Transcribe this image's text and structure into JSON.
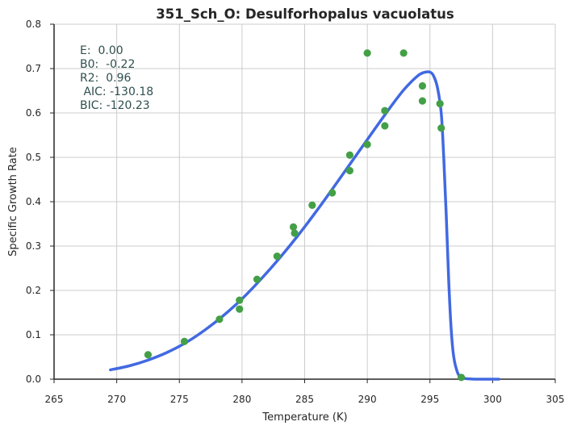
{
  "chart_data": {
    "type": "scatter",
    "title": "351_Sch_O: Desulforhopalus vacuolatus",
    "xlabel": "Temperature (K)",
    "ylabel": "Specific Growth Rate",
    "xlim": [
      265,
      305
    ],
    "ylim": [
      0,
      0.8
    ],
    "xticks": [
      265,
      270,
      275,
      280,
      285,
      290,
      295,
      300,
      305
    ],
    "yticks": [
      0.0,
      0.1,
      0.2,
      0.3,
      0.4,
      0.5,
      0.6,
      0.7,
      0.8
    ],
    "grid": true,
    "stats_lines": [
      "E:  0.00",
      "B0:  -0.22",
      "R2:  0.96",
      " AIC: -130.18",
      "BIC: -120.23"
    ],
    "colors": {
      "points": "#43a047",
      "fit": "#4169e1",
      "grid": "#cccccc",
      "axis": "#262626",
      "stats": "#2f4f4f"
    },
    "points": [
      {
        "x": 272.5,
        "y": 0.055
      },
      {
        "x": 275.4,
        "y": 0.085
      },
      {
        "x": 278.2,
        "y": 0.135
      },
      {
        "x": 279.8,
        "y": 0.178
      },
      {
        "x": 279.8,
        "y": 0.158
      },
      {
        "x": 281.2,
        "y": 0.225
      },
      {
        "x": 282.8,
        "y": 0.277
      },
      {
        "x": 284.1,
        "y": 0.343
      },
      {
        "x": 284.2,
        "y": 0.329
      },
      {
        "x": 285.6,
        "y": 0.392
      },
      {
        "x": 287.2,
        "y": 0.42
      },
      {
        "x": 288.6,
        "y": 0.505
      },
      {
        "x": 288.6,
        "y": 0.47
      },
      {
        "x": 290.0,
        "y": 0.735
      },
      {
        "x": 290.0,
        "y": 0.529
      },
      {
        "x": 291.4,
        "y": 0.605
      },
      {
        "x": 291.4,
        "y": 0.571
      },
      {
        "x": 292.9,
        "y": 0.735
      },
      {
        "x": 294.4,
        "y": 0.661
      },
      {
        "x": 294.4,
        "y": 0.627
      },
      {
        "x": 295.8,
        "y": 0.621
      },
      {
        "x": 295.9,
        "y": 0.566
      },
      {
        "x": 297.5,
        "y": 0.004
      }
    ],
    "fit_curve": {
      "x": [
        269.5,
        271,
        272.5,
        274,
        275.5,
        277,
        278.5,
        280,
        281.5,
        283,
        284.5,
        286,
        287.5,
        289,
        290.5,
        292,
        293,
        294,
        294.5,
        295,
        295.3,
        295.6,
        295.9,
        296.1,
        296.3,
        296.5,
        296.7,
        296.9,
        297.2,
        297.5,
        298,
        299,
        300.5
      ],
      "y": [
        0.021,
        0.03,
        0.043,
        0.06,
        0.082,
        0.11,
        0.143,
        0.181,
        0.225,
        0.273,
        0.325,
        0.381,
        0.44,
        0.5,
        0.56,
        0.619,
        0.655,
        0.683,
        0.691,
        0.692,
        0.683,
        0.657,
        0.6,
        0.5,
        0.37,
        0.22,
        0.11,
        0.05,
        0.015,
        0.004,
        0.001,
        0.0,
        0.0
      ]
    }
  }
}
